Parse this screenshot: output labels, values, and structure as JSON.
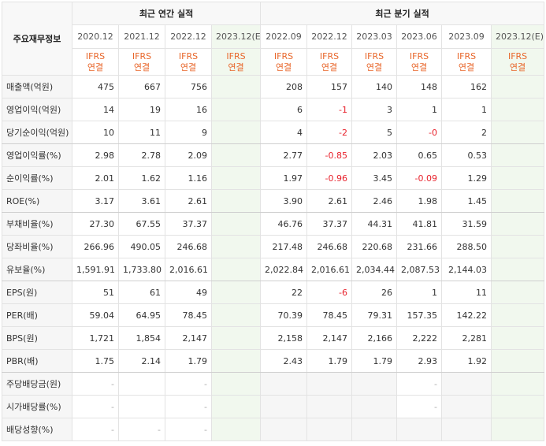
{
  "header": {
    "label": "주요재무정보",
    "annual_title": "최근 연간 실적",
    "quarterly_title": "최근 분기 실적",
    "annual_periods": [
      "2020.12",
      "2021.12",
      "2022.12",
      "2023.12(E)"
    ],
    "quarterly_periods": [
      "2022.09",
      "2022.12",
      "2023.03",
      "2023.06",
      "2023.09",
      "2023.12(E)"
    ],
    "standard_line1": "IFRS",
    "standard_line2": "연결"
  },
  "rows": [
    {
      "label": "매출액(억원)",
      "annual": [
        "475",
        "667",
        "756",
        ""
      ],
      "quarterly": [
        "208",
        "157",
        "140",
        "148",
        "162",
        ""
      ]
    },
    {
      "label": "영업이익(억원)",
      "annual": [
        "14",
        "19",
        "16",
        ""
      ],
      "quarterly": [
        "6",
        "-1",
        "3",
        "1",
        "1",
        ""
      ]
    },
    {
      "label": "당기순이익(억원)",
      "annual": [
        "10",
        "11",
        "9",
        ""
      ],
      "quarterly": [
        "4",
        "-2",
        "5",
        "-0",
        "2",
        ""
      ]
    },
    {
      "label": "영업이익률(%)",
      "annual": [
        "2.98",
        "2.78",
        "2.09",
        ""
      ],
      "quarterly": [
        "2.77",
        "-0.85",
        "2.03",
        "0.65",
        "0.53",
        ""
      ]
    },
    {
      "label": "순이익률(%)",
      "annual": [
        "2.01",
        "1.62",
        "1.16",
        ""
      ],
      "quarterly": [
        "1.97",
        "-0.96",
        "3.45",
        "-0.09",
        "1.29",
        ""
      ]
    },
    {
      "label": "ROE(%)",
      "annual": [
        "3.17",
        "3.61",
        "2.61",
        ""
      ],
      "quarterly": [
        "3.90",
        "2.61",
        "2.46",
        "1.98",
        "1.45",
        ""
      ]
    },
    {
      "label": "부채비율(%)",
      "annual": [
        "27.30",
        "67.55",
        "37.37",
        ""
      ],
      "quarterly": [
        "46.76",
        "37.37",
        "44.31",
        "41.81",
        "31.59",
        ""
      ]
    },
    {
      "label": "당좌비율(%)",
      "annual": [
        "266.96",
        "490.05",
        "246.68",
        ""
      ],
      "quarterly": [
        "217.48",
        "246.68",
        "220.68",
        "231.66",
        "288.50",
        ""
      ]
    },
    {
      "label": "유보율(%)",
      "annual": [
        "1,591.91",
        "1,733.80",
        "2,016.61",
        ""
      ],
      "quarterly": [
        "2,022.84",
        "2,016.61",
        "2,034.44",
        "2,087.53",
        "2,144.03",
        ""
      ]
    },
    {
      "label": "EPS(원)",
      "annual": [
        "51",
        "61",
        "49",
        ""
      ],
      "quarterly": [
        "22",
        "-6",
        "26",
        "1",
        "11",
        ""
      ]
    },
    {
      "label": "PER(배)",
      "annual": [
        "59.04",
        "64.95",
        "78.45",
        ""
      ],
      "quarterly": [
        "70.39",
        "78.45",
        "79.31",
        "157.35",
        "142.22",
        ""
      ]
    },
    {
      "label": "BPS(원)",
      "annual": [
        "1,721",
        "1,854",
        "2,147",
        ""
      ],
      "quarterly": [
        "2,158",
        "2,147",
        "2,166",
        "2,222",
        "2,281",
        ""
      ]
    },
    {
      "label": "PBR(배)",
      "annual": [
        "1.75",
        "2.14",
        "1.79",
        ""
      ],
      "quarterly": [
        "2.43",
        "1.79",
        "1.79",
        "2.93",
        "1.92",
        ""
      ]
    },
    {
      "label": "주당배당금(원)",
      "annual": [
        "-",
        "",
        "-",
        ""
      ],
      "quarterly": [
        "",
        "",
        "",
        "-",
        "",
        ""
      ]
    },
    {
      "label": "시가배당률(%)",
      "annual": [
        "-",
        "",
        "-",
        ""
      ],
      "quarterly": [
        "",
        "",
        "",
        "-",
        "",
        ""
      ]
    },
    {
      "label": "배당성향(%)",
      "annual": [
        "-",
        "-",
        "-",
        ""
      ],
      "quarterly": [
        "",
        "",
        "",
        "",
        "",
        ""
      ]
    }
  ]
}
